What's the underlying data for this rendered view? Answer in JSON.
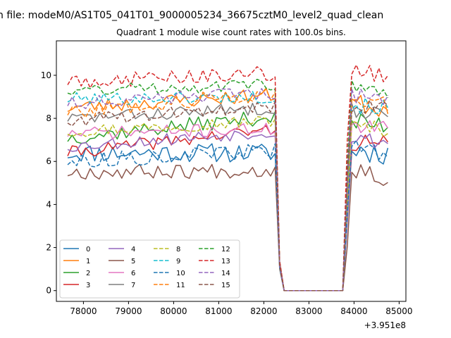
{
  "figure": {
    "suptitle": "n file: modeM0/AS1T05_041T01_9000005234_36675cztM0_level2_quad_clean",
    "title": "Quadrant 1 module wise count rates with 100.0s bins.",
    "x_offset_label": "+3.951e8"
  },
  "chart_data": {
    "type": "line",
    "title": "Quadrant 1 module wise count rates with 100.0s bins.",
    "xlabel": "",
    "ylabel": "",
    "x_offset": 395100000,
    "xlim": [
      77400,
      85150
    ],
    "ylim": [
      -0.5,
      11.6
    ],
    "xticks": [
      78000,
      79000,
      80000,
      81000,
      82000,
      83000,
      84000,
      85000
    ],
    "xtick_labels": [
      "78000",
      "79000",
      "80000",
      "81000",
      "82000",
      "83000",
      "84000",
      "85000"
    ],
    "yticks": [
      0,
      2,
      4,
      6,
      8,
      10
    ],
    "ytick_labels": [
      "0",
      "2",
      "4",
      "6",
      "8",
      "10"
    ],
    "grid": false,
    "legend_placement": "lower-left",
    "legend_columns": 4,
    "segment_1": {
      "x_start": 77650,
      "x_step": 100,
      "count": 47
    },
    "gap": {
      "x": [
        82350,
        82450,
        82550,
        83750
      ],
      "y": [
        1.2,
        0,
        0,
        0
      ]
    },
    "segment_2": {
      "x_start": 83850,
      "x_step": 100,
      "count": 10
    },
    "series": [
      {
        "name": "0",
        "color": "#1f77b4",
        "dash": "solid",
        "seg1_start": 6.4,
        "seg1_end": 6.4,
        "jitter": 0.45,
        "seg2_start": 6.6,
        "seg2_end": 6.4,
        "seed": 11
      },
      {
        "name": "1",
        "color": "#ff7f0e",
        "dash": "solid",
        "seg1_start": 8.5,
        "seg1_end": 9.1,
        "jitter": 0.35,
        "seg2_start": 8.8,
        "seg2_end": 8.4,
        "seed": 23
      },
      {
        "name": "2",
        "color": "#2ca02c",
        "dash": "solid",
        "seg1_start": 7.1,
        "seg1_end": 8.1,
        "jitter": 0.35,
        "seg2_start": 7.8,
        "seg2_end": 7.7,
        "seed": 37
      },
      {
        "name": "3",
        "color": "#d62728",
        "dash": "solid",
        "seg1_start": 6.4,
        "seg1_end": 7.5,
        "jitter": 0.3,
        "seg2_start": 6.9,
        "seg2_end": 6.8,
        "seed": 41
      },
      {
        "name": "4",
        "color": "#9467bd",
        "dash": "solid",
        "seg1_start": 6.7,
        "seg1_end": 7.4,
        "jitter": 0.3,
        "seg2_start": 7.1,
        "seg2_end": 6.9,
        "seed": 53
      },
      {
        "name": "5",
        "color": "#8c564b",
        "dash": "solid",
        "seg1_start": 5.5,
        "seg1_end": 5.6,
        "jitter": 0.35,
        "seg2_start": 5.8,
        "seg2_end": 5.2,
        "seed": 67
      },
      {
        "name": "6",
        "color": "#e377c2",
        "dash": "solid",
        "seg1_start": 7.3,
        "seg1_end": 7.5,
        "jitter": 0.3,
        "seg2_start": 7.6,
        "seg2_end": 7.5,
        "seed": 71
      },
      {
        "name": "7",
        "color": "#7f7f7f",
        "dash": "solid",
        "seg1_start": 8.0,
        "seg1_end": 8.5,
        "jitter": 0.3,
        "seg2_start": 8.4,
        "seg2_end": 8.2,
        "seed": 83
      },
      {
        "name": "8",
        "color": "#bcbd22",
        "dash": "dashed",
        "seg1_start": 7.4,
        "seg1_end": 7.9,
        "jitter": 0.3,
        "seg2_start": 7.6,
        "seg2_end": 7.5,
        "seed": 97
      },
      {
        "name": "9",
        "color": "#17becf",
        "dash": "dashed",
        "seg1_start": 8.9,
        "seg1_end": 9.0,
        "jitter": 0.3,
        "seg2_start": 8.6,
        "seg2_end": 8.5,
        "seed": 101
      },
      {
        "name": "10",
        "color": "#1f77b4",
        "dash": "dashed",
        "seg1_start": 6.0,
        "seg1_end": 6.5,
        "jitter": 0.35,
        "seg2_start": 6.7,
        "seg2_end": 6.4,
        "seed": 113
      },
      {
        "name": "11",
        "color": "#ff7f0e",
        "dash": "dashed",
        "seg1_start": 8.3,
        "seg1_end": 9.2,
        "jitter": 0.35,
        "seg2_start": 8.9,
        "seg2_end": 8.5,
        "seed": 127
      },
      {
        "name": "12",
        "color": "#2ca02c",
        "dash": "dashed",
        "seg1_start": 9.3,
        "seg1_end": 9.6,
        "jitter": 0.3,
        "seg2_start": 9.5,
        "seg2_end": 9.0,
        "seed": 131
      },
      {
        "name": "13",
        "color": "#d62728",
        "dash": "dashed",
        "seg1_start": 9.7,
        "seg1_end": 10.1,
        "jitter": 0.35,
        "seg2_start": 10.3,
        "seg2_end": 9.9,
        "seed": 149
      },
      {
        "name": "14",
        "color": "#9467bd",
        "dash": "dashed",
        "seg1_start": 8.7,
        "seg1_end": 9.2,
        "jitter": 0.3,
        "seg2_start": 9.0,
        "seg2_end": 8.9,
        "seed": 151
      },
      {
        "name": "15",
        "color": "#8c564b",
        "dash": "dashed",
        "seg1_start": 7.9,
        "seg1_end": 8.6,
        "jitter": 0.3,
        "seg2_start": 8.5,
        "seg2_end": 8.6,
        "seed": 163
      }
    ]
  }
}
